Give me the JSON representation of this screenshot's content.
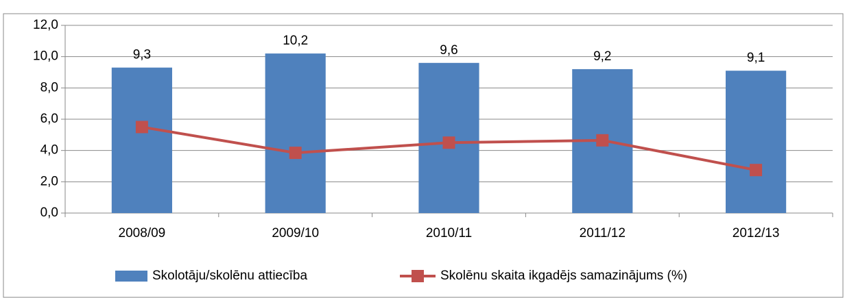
{
  "chart_data": {
    "type": "bar",
    "categories": [
      "2008/09",
      "2009/10",
      "2010/11",
      "2011/12",
      "2012/13"
    ],
    "series": [
      {
        "name": "Skolotāju/skolēnu attiecība",
        "type": "bar",
        "color": "#4f81bd",
        "values": [
          9.3,
          10.2,
          9.6,
          9.2,
          9.1
        ],
        "value_labels": [
          "9,3",
          "10,2",
          "9,6",
          "9,2",
          "9,1"
        ]
      },
      {
        "name": "Skolēnu skaita ikgadējs samazinājums (%)",
        "type": "line",
        "color": "#c0504d",
        "values": [
          5.5,
          3.85,
          4.5,
          4.65,
          2.75
        ]
      }
    ],
    "ylim": [
      0,
      12
    ],
    "yticks": [
      {
        "value": 0,
        "label": "0,0"
      },
      {
        "value": 2,
        "label": "2,0"
      },
      {
        "value": 4,
        "label": "4,0"
      },
      {
        "value": 6,
        "label": "6,0"
      },
      {
        "value": 8,
        "label": "8,0"
      },
      {
        "value": 10,
        "label": "10,0"
      },
      {
        "value": 12,
        "label": "12,0"
      }
    ],
    "grid": true,
    "legend": "bottom"
  }
}
